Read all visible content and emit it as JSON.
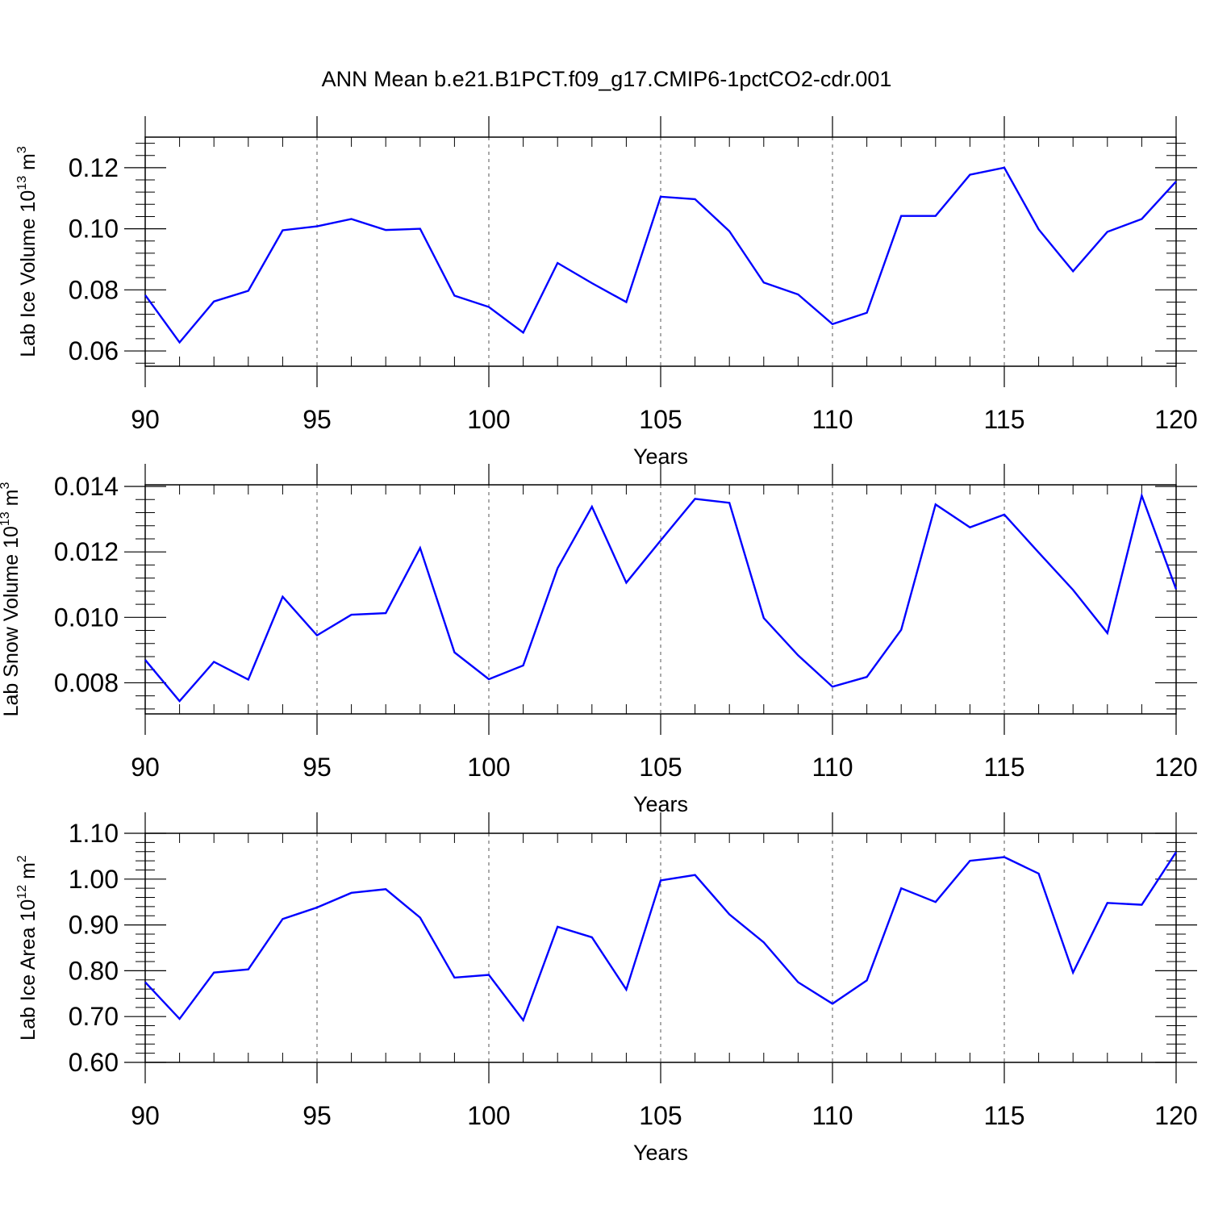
{
  "title": "ANN Mean b.e21.B1PCT.f09_g17.CMIP6-1pctCO2-cdr.001",
  "line_color": "#0000ff",
  "chart_data": [
    {
      "type": "line",
      "xlabel": "Years",
      "ylabel": {
        "prefix": "Lab Ice Volume 10",
        "exp": "13",
        "unit": " m",
        "unit_exp": "3"
      },
      "xlim": [
        90,
        120
      ],
      "ylim": [
        0.055,
        0.13
      ],
      "xticks": [
        90,
        95,
        100,
        105,
        110,
        115,
        120
      ],
      "xtick_labels": [
        "90",
        "95",
        "100",
        "105",
        "110",
        "115",
        "120"
      ],
      "yticks": [
        0.06,
        0.08,
        0.1,
        0.12
      ],
      "ytick_labels": [
        "0.06",
        "0.08",
        "0.10",
        "0.12"
      ],
      "grid_x": true,
      "x": [
        90,
        91,
        92,
        93,
        94,
        95,
        96,
        97,
        98,
        99,
        100,
        101,
        102,
        103,
        104,
        105,
        106,
        107,
        108,
        109,
        110,
        111,
        112,
        113,
        114,
        115,
        116,
        117,
        118,
        119,
        120
      ],
      "series": [
        {
          "values": [
            0.0783,
            0.0628,
            0.0762,
            0.0797,
            0.0995,
            0.1008,
            0.1032,
            0.0996,
            0.1,
            0.0781,
            0.0744,
            0.066,
            0.0888,
            0.0822,
            0.076,
            0.1105,
            0.1097,
            0.0992,
            0.0824,
            0.0785,
            0.0688,
            0.0725,
            0.1042,
            0.1042,
            0.1177,
            0.12,
            0.0998,
            0.0861,
            0.099,
            0.1032,
            0.1155
          ]
        }
      ]
    },
    {
      "type": "line",
      "xlabel": "Years",
      "ylabel": {
        "prefix": "Lab Snow Volume 10",
        "exp": "13",
        "unit": " m",
        "unit_exp": "3"
      },
      "xlim": [
        90,
        120
      ],
      "ylim": [
        0.00705,
        0.01405
      ],
      "xticks": [
        90,
        95,
        100,
        105,
        110,
        115,
        120
      ],
      "xtick_labels": [
        "90",
        "95",
        "100",
        "105",
        "110",
        "115",
        "120"
      ],
      "yticks": [
        0.008,
        0.01,
        0.012,
        0.014
      ],
      "ytick_labels": [
        "0.008",
        "0.010",
        "0.012",
        "0.014"
      ],
      "grid_x": true,
      "x": [
        90,
        91,
        92,
        93,
        94,
        95,
        96,
        97,
        98,
        99,
        100,
        101,
        102,
        103,
        104,
        105,
        106,
        107,
        108,
        109,
        110,
        111,
        112,
        113,
        114,
        115,
        116,
        117,
        118,
        119,
        120
      ],
      "series": [
        {
          "values": [
            0.0087,
            0.00744,
            0.00864,
            0.0081,
            0.01063,
            0.00945,
            0.01008,
            0.01013,
            0.01212,
            0.00893,
            0.00811,
            0.00853,
            0.0115,
            0.01338,
            0.01106,
            0.01235,
            0.01362,
            0.0135,
            0.00998,
            0.00884,
            0.00788,
            0.00818,
            0.00962,
            0.01345,
            0.01275,
            0.01314,
            0.01198,
            0.01084,
            0.00952,
            0.01372,
            0.01086
          ]
        }
      ]
    },
    {
      "type": "line",
      "xlabel": "Years",
      "ylabel": {
        "prefix": "Lab Ice Area 10",
        "exp": "12",
        "unit": " m",
        "unit_exp": "2"
      },
      "xlim": [
        90,
        120
      ],
      "ylim": [
        0.6,
        1.1
      ],
      "xticks": [
        90,
        95,
        100,
        105,
        110,
        115,
        120
      ],
      "xtick_labels": [
        "90",
        "95",
        "100",
        "105",
        "110",
        "115",
        "120"
      ],
      "yticks": [
        0.6,
        0.7,
        0.8,
        0.9,
        1.0,
        1.1
      ],
      "ytick_labels": [
        "0.60",
        "0.70",
        "0.80",
        "0.90",
        "1.00",
        "1.10"
      ],
      "grid_x": true,
      "x": [
        90,
        91,
        92,
        93,
        94,
        95,
        96,
        97,
        98,
        99,
        100,
        101,
        102,
        103,
        104,
        105,
        106,
        107,
        108,
        109,
        110,
        111,
        112,
        113,
        114,
        115,
        116,
        117,
        118,
        119,
        120
      ],
      "series": [
        {
          "values": [
            0.775,
            0.695,
            0.796,
            0.803,
            0.913,
            0.938,
            0.97,
            0.978,
            0.916,
            0.785,
            0.791,
            0.692,
            0.896,
            0.873,
            0.759,
            0.997,
            1.009,
            0.923,
            0.862,
            0.775,
            0.728,
            0.779,
            0.98,
            0.95,
            1.04,
            1.048,
            1.012,
            0.796,
            0.948,
            0.944,
            1.059
          ]
        }
      ]
    }
  ]
}
